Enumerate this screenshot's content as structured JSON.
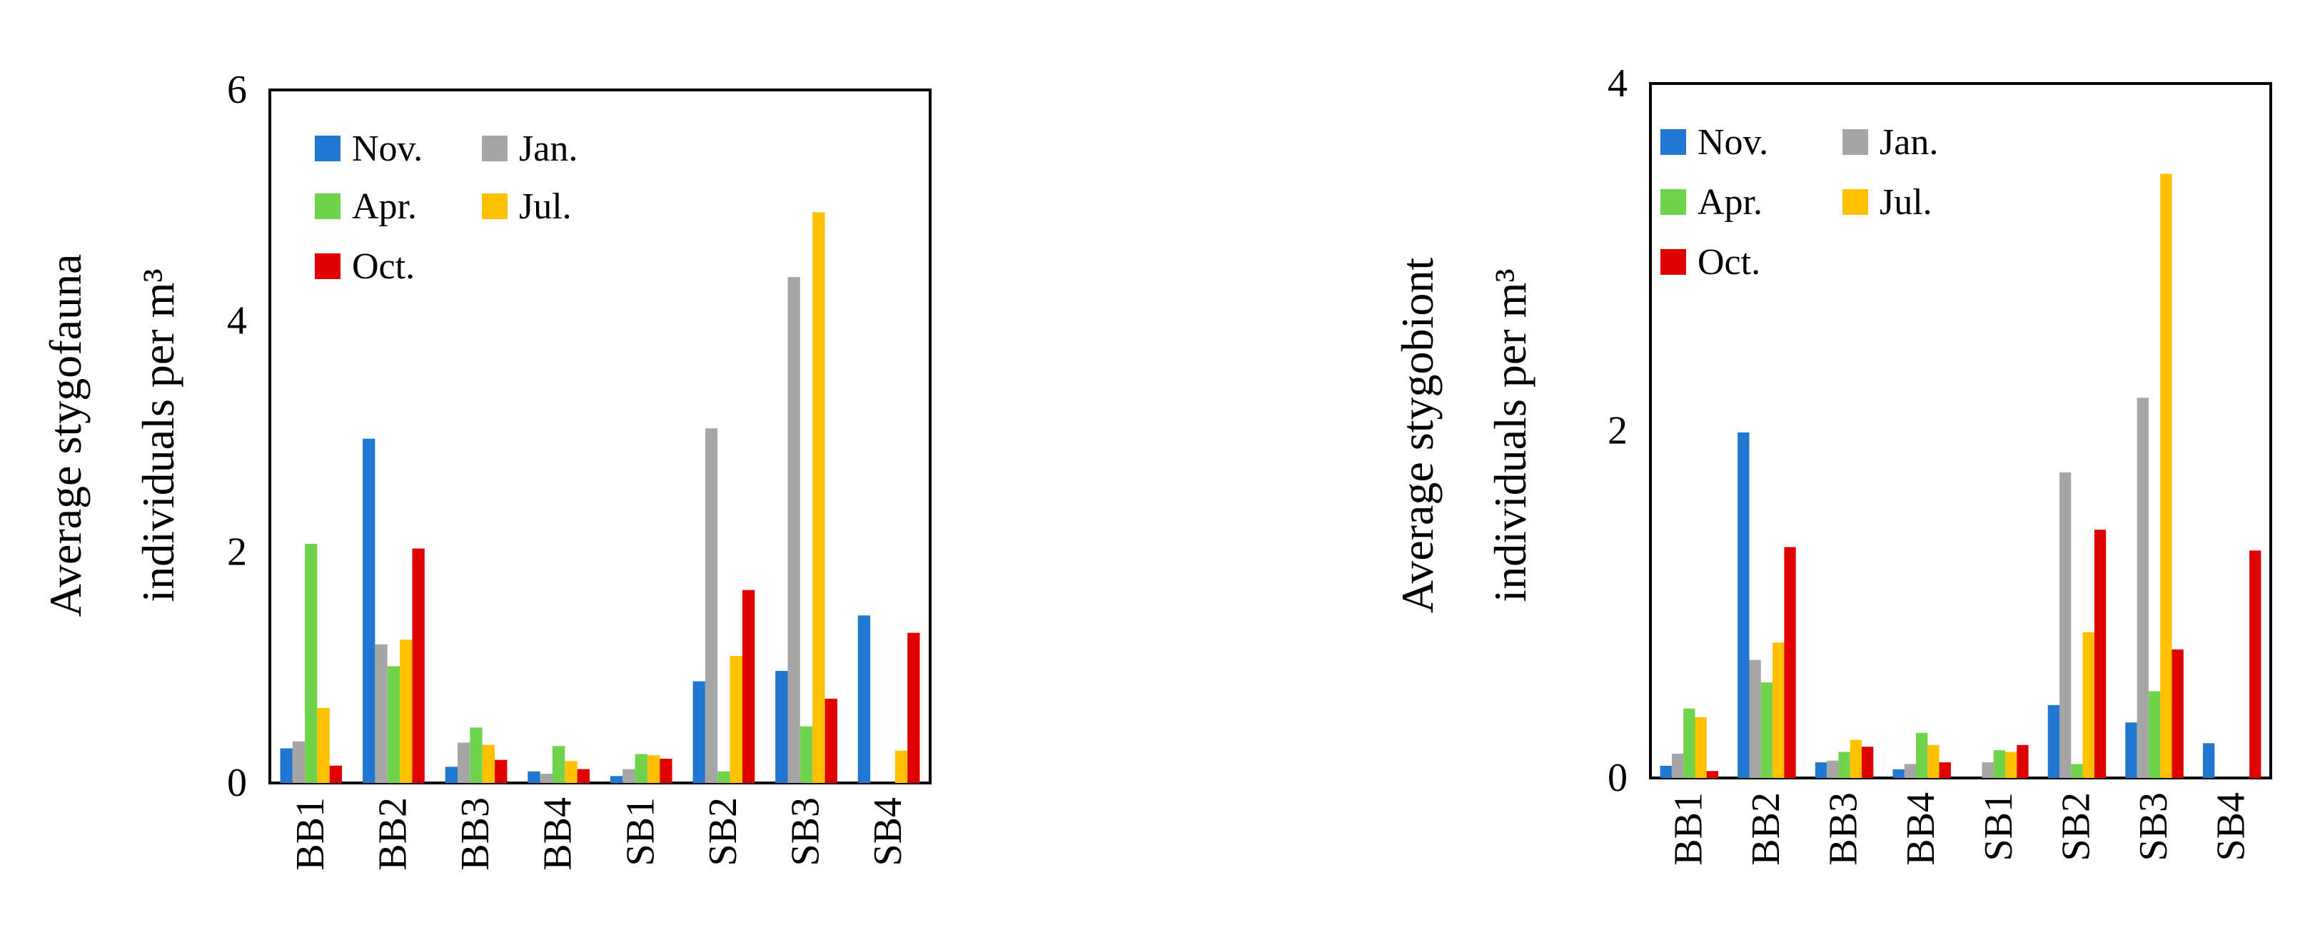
{
  "chart_data": [
    {
      "type": "bar",
      "title": "",
      "xlabel": "",
      "ylabel_line1": "Average stygofauna",
      "ylabel_line2": "individuals per m³",
      "ylim": [
        0,
        6
      ],
      "yticks": [
        "0",
        "2",
        "4",
        "6"
      ],
      "categories": [
        "BB1",
        "BB2",
        "BB3",
        "BB4",
        "SB1",
        "SB2",
        "SB3",
        "SB4"
      ],
      "legend_position": "top-left",
      "grid": false,
      "series": [
        {
          "name": "Nov.",
          "color": "#1F77D0",
          "values": [
            0.3,
            2.98,
            0.14,
            0.1,
            0.06,
            0.88,
            0.97,
            1.45
          ]
        },
        {
          "name": "Jan.",
          "color": "#A6A6A6",
          "values": [
            0.36,
            1.2,
            0.35,
            0.08,
            0.12,
            3.07,
            4.38,
            0.0
          ]
        },
        {
          "name": "Apr.",
          "color": "#70D34D",
          "values": [
            2.07,
            1.01,
            0.48,
            0.32,
            0.25,
            0.1,
            0.49,
            0.0
          ]
        },
        {
          "name": "Jul.",
          "color": "#FFC000",
          "values": [
            0.65,
            1.24,
            0.33,
            0.19,
            0.24,
            1.1,
            4.94,
            0.28
          ]
        },
        {
          "name": "Oct.",
          "color": "#E00000",
          "values": [
            0.15,
            2.03,
            0.2,
            0.12,
            0.21,
            1.67,
            0.73,
            1.3
          ]
        }
      ]
    },
    {
      "type": "bar",
      "title": "",
      "xlabel": "",
      "ylabel_line1": "Average stygobiont",
      "ylabel_line2": "individuals per m³",
      "ylim": [
        0,
        4
      ],
      "yticks": [
        "0",
        "2",
        "4"
      ],
      "categories": [
        "BB1",
        "BB2",
        "BB3",
        "BB4",
        "SB1",
        "SB2",
        "SB3",
        "SB4"
      ],
      "legend_position": "top-left",
      "grid": false,
      "series": [
        {
          "name": "Nov.",
          "color": "#1F77D0",
          "values": [
            0.07,
            1.99,
            0.09,
            0.05,
            0.0,
            0.42,
            0.32,
            0.2
          ]
        },
        {
          "name": "Jan.",
          "color": "#A6A6A6",
          "values": [
            0.14,
            0.68,
            0.1,
            0.08,
            0.09,
            1.76,
            2.19,
            0.0
          ]
        },
        {
          "name": "Apr.",
          "color": "#70D34D",
          "values": [
            0.4,
            0.55,
            0.15,
            0.26,
            0.16,
            0.08,
            0.5,
            0.0
          ]
        },
        {
          "name": "Jul.",
          "color": "#FFC000",
          "values": [
            0.35,
            0.78,
            0.22,
            0.19,
            0.15,
            0.84,
            3.48,
            0.0
          ]
        },
        {
          "name": "Oct.",
          "color": "#E00000",
          "values": [
            0.04,
            1.33,
            0.18,
            0.09,
            0.19,
            1.43,
            0.74,
            1.31
          ]
        }
      ]
    }
  ]
}
